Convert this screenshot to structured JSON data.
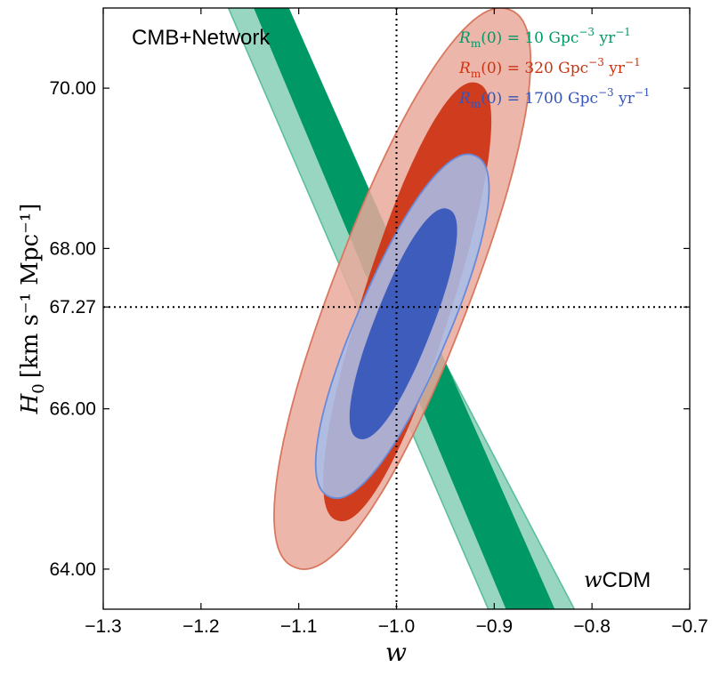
{
  "chart_data": {
    "type": "contour",
    "xlabel": "w",
    "ylabel": {
      "symbol": "H",
      "subscript": "0",
      "units": "[km s⁻¹ Mpc⁻¹]"
    },
    "xlim": [
      -1.3,
      -0.7
    ],
    "ylim": [
      63.5,
      71.0
    ],
    "x_ticks": [
      -1.3,
      -1.2,
      -1.1,
      -1.0,
      -0.9,
      -0.8,
      -0.7
    ],
    "x_tick_labels": [
      "−1.3",
      "−1.2",
      "−1.1",
      "−1.0",
      "−0.9",
      "−0.8",
      "−0.7"
    ],
    "y_ticks": [
      64.0,
      66.0,
      67.27,
      68.0,
      70.0
    ],
    "y_tick_labels": [
      "64.00",
      "66.00",
      "67.27",
      "68.00",
      "70.00"
    ],
    "reference_lines": {
      "w": -1.0,
      "H0": 67.27,
      "style": "dotted"
    },
    "annotations": {
      "top_left": "CMB+Network",
      "bottom_right_italic": "w",
      "bottom_right_text": "CDM"
    },
    "series": [
      {
        "name": "Rm(0) = 10 Gpc^-3 yr^-1",
        "legend": {
          "symbol": "R",
          "sub": "m",
          "value_text": "(0) = 10 Gpc",
          "exp1": "−3",
          "unit2": " yr",
          "exp2": "−1"
        },
        "color_inner": "#009966",
        "color_outer": "#99d6c1",
        "edge_color": "#5cbf9b",
        "shape": "band",
        "band_outer_top": [
          -1.172,
          -1.141
        ],
        "band_inner_top": [
          -1.146,
          -1.11
        ],
        "band_outer_bottom": [
          -0.906,
          -0.818
        ],
        "band_inner_bottom": [
          -0.888,
          -0.838
        ],
        "y_top": 71.0,
        "y_bottom": 63.5
      },
      {
        "name": "Rm(0) = 320 Gpc^-3 yr^-1",
        "legend": {
          "symbol": "R",
          "sub": "m",
          "value_text": "(0) = 320 Gpc",
          "exp1": "−3",
          "unit2": " yr",
          "exp2": "−1"
        },
        "color_inner": "#cc3311",
        "color_outer": "#eaa99c",
        "edge_color": "#d9785f",
        "shape": "ellipse",
        "center": [
          -0.989,
          67.34
        ],
        "contour_68": {
          "w_range": [
            -1.062,
            -0.916
          ],
          "H0_range": [
            64.55,
            70.12
          ]
        },
        "contour_95": {
          "w_range": [
            -1.106,
            -0.882
          ],
          "H0_range": [
            63.95,
            71.05
          ]
        }
      },
      {
        "name": "Rm(0) = 1700 Gpc^-3 yr^-1",
        "legend": {
          "symbol": "R",
          "sub": "m",
          "value_text": "(0) = 1700 Gpc",
          "exp1": "−3",
          "unit2": " yr",
          "exp2": "−1"
        },
        "color_inner": "#3355bb",
        "color_outer": "#a9bde8",
        "edge_color": "#6a8ad8",
        "shape": "ellipse",
        "center": [
          -0.993,
          67.02
        ],
        "contour_68": {
          "w_range": [
            -1.04,
            -0.946
          ],
          "H0_range": [
            65.6,
            68.52
          ]
        },
        "contour_95": {
          "w_range": [
            -1.07,
            -0.918
          ],
          "H0_range": [
            64.86,
            69.2
          ]
        }
      }
    ]
  }
}
